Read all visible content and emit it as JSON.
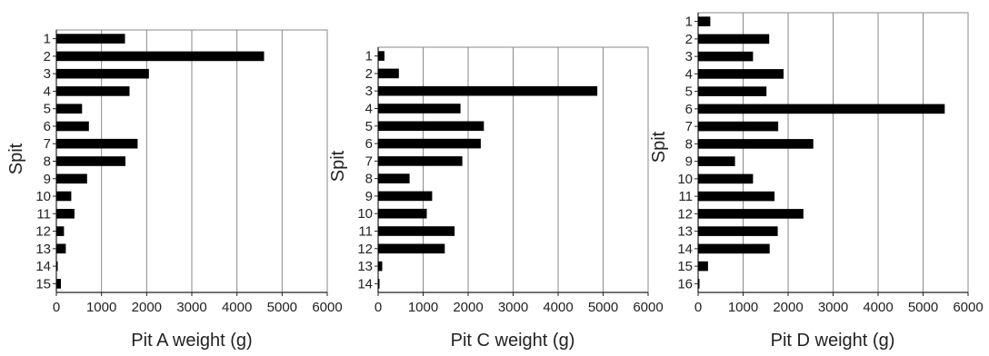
{
  "chart_data": [
    {
      "type": "bar",
      "orientation": "horizontal",
      "ylabel": "Spit",
      "xlabel": "Pit A weight (g)",
      "xlim": [
        0,
        6000
      ],
      "xticks": [
        "0",
        "1000",
        "2000",
        "3000",
        "4000",
        "5000",
        "6000"
      ],
      "categories": [
        "1",
        "2",
        "3",
        "4",
        "5",
        "6",
        "7",
        "8",
        "9",
        "10",
        "11",
        "12",
        "13",
        "14",
        "15"
      ],
      "values": [
        1520,
        4600,
        2050,
        1620,
        570,
        720,
        1800,
        1530,
        680,
        330,
        400,
        170,
        210,
        30,
        100
      ],
      "grid": true,
      "bar_color": "#000000"
    },
    {
      "type": "bar",
      "orientation": "horizontal",
      "ylabel": "Spit",
      "xlabel": "Pit C weight (g)",
      "xlim": [
        0,
        6000
      ],
      "xticks": [
        "0",
        "1000",
        "2000",
        "3000",
        "4000",
        "5000",
        "6000"
      ],
      "categories": [
        "1",
        "2",
        "3",
        "4",
        "5",
        "6",
        "7",
        "8",
        "9",
        "10",
        "11",
        "12",
        "13",
        "14"
      ],
      "values": [
        140,
        460,
        4870,
        1830,
        2350,
        2280,
        1870,
        700,
        1200,
        1080,
        1700,
        1480,
        90,
        30
      ],
      "grid": true,
      "bar_color": "#000000"
    },
    {
      "type": "bar",
      "orientation": "horizontal",
      "ylabel": "Spit",
      "xlabel": "Pit D weight (g)",
      "xlim": [
        0,
        6000
      ],
      "xticks": [
        "0",
        "1000",
        "2000",
        "3000",
        "4000",
        "5000",
        "6000"
      ],
      "categories": [
        "1",
        "2",
        "3",
        "4",
        "5",
        "6",
        "7",
        "8",
        "9",
        "10",
        "11",
        "12",
        "13",
        "14",
        "15",
        "16"
      ],
      "values": [
        270,
        1580,
        1220,
        1900,
        1520,
        5480,
        1780,
        2560,
        820,
        1220,
        1700,
        2340,
        1770,
        1590,
        220,
        30
      ],
      "grid": true,
      "bar_color": "#000000"
    }
  ]
}
